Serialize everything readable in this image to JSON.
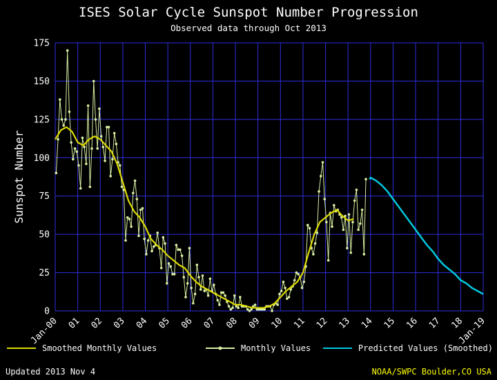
{
  "title": "ISES Solar Cycle Sunspot Number Progression",
  "subtitle": "Observed data through Oct 2013",
  "footer": {
    "updated": "Updated 2013 Nov  4",
    "source": "NOAA/SWPC Boulder,CO USA"
  },
  "legend": [
    {
      "label": "Smoothed Monthly Values",
      "color": "#dedc00",
      "style": "line"
    },
    {
      "label": "Monthly Values",
      "color": "#d9efa3",
      "style": "line-dot"
    },
    {
      "label": "Predicted Values (Smoothed)",
      "color": "#00c9e0",
      "style": "line"
    }
  ],
  "chart_data": {
    "type": "line",
    "title": "ISES Solar Cycle Sunspot Number Progression",
    "subtitle": "Observed data through Oct 2013",
    "xlabel": "",
    "ylabel": "Sunspot Number",
    "ylim": [
      0,
      175
    ],
    "x_range": [
      2000,
      2019
    ],
    "y_ticks": [
      0,
      25,
      50,
      75,
      100,
      125,
      150,
      175
    ],
    "x_ticks": {
      "years": [
        2000,
        2001,
        2002,
        2003,
        2004,
        2005,
        2006,
        2007,
        2008,
        2009,
        2010,
        2011,
        2012,
        2013,
        2014,
        2015,
        2016,
        2017,
        2018,
        2019
      ],
      "labels": [
        "Jan-00",
        "01",
        "02",
        "03",
        "04",
        "05",
        "06",
        "07",
        "08",
        "09",
        "10",
        "11",
        "12",
        "13",
        "14",
        "15",
        "16",
        "17",
        "18",
        "Jan-19"
      ]
    },
    "grid": true,
    "legend_position": "bottom",
    "colors": {
      "background": "#000000",
      "grid": "#2e2ee0",
      "text": "#ffffff",
      "accent": "#ffff00",
      "monthly": "#d9efa3",
      "smoothed": "#dedc00",
      "predicted": "#00c9e0"
    },
    "series": [
      {
        "name": "Monthly Values",
        "color": "#d9efa3",
        "start_year": 2000,
        "start_month": 1,
        "values": [
          90,
          112,
          138,
          125,
          121,
          125,
          170,
          130,
          110,
          99,
          106,
          104,
          95,
          80,
          113,
          107,
          96,
          134,
          81,
          106,
          150,
          125,
          106,
          132,
          114,
          107,
          98,
          120,
          120,
          88,
          99,
          116,
          109,
          97,
          95,
          81,
          79,
          46,
          61,
          60,
          55,
          77,
          85,
          73,
          49,
          66,
          67,
          47,
          37,
          46,
          49,
          39,
          42,
          43,
          51,
          41,
          28,
          48,
          44,
          18,
          31,
          29,
          24,
          24,
          43,
          40,
          40,
          36,
          22,
          9,
          18,
          41,
          15,
          5,
          11,
          30,
          22,
          14,
          23,
          13,
          14,
          10,
          21,
          13,
          17,
          11,
          7,
          4,
          12,
          12,
          10,
          6,
          3,
          1,
          2,
          10,
          3,
          2,
          9,
          3,
          3,
          3,
          1,
          0,
          1,
          3,
          4,
          1,
          1,
          1,
          1,
          1,
          3,
          3,
          3,
          0,
          4,
          5,
          4,
          11,
          13,
          19,
          15,
          8,
          9,
          14,
          16,
          20,
          25,
          24,
          22,
          15,
          19,
          29,
          56,
          54,
          41,
          37,
          44,
          51,
          78,
          88,
          97,
          73,
          58,
          33,
          64,
          55,
          69,
          65,
          66,
          63,
          61,
          53,
          62,
          41,
          63,
          38,
          58,
          72,
          79,
          53,
          57,
          66,
          37,
          86
        ]
      },
      {
        "name": "Smoothed Monthly Values",
        "color": "#dedc00",
        "x": [
          2000.0,
          2000.25,
          2000.5,
          2000.75,
          2001.0,
          2001.25,
          2001.5,
          2001.75,
          2002.0,
          2002.25,
          2002.5,
          2002.75,
          2003.0,
          2003.25,
          2003.5,
          2003.75,
          2004.0,
          2004.25,
          2004.5,
          2004.75,
          2005.0,
          2005.25,
          2005.5,
          2005.75,
          2006.0,
          2006.25,
          2006.5,
          2006.75,
          2007.0,
          2007.25,
          2007.5,
          2007.75,
          2008.0,
          2008.25,
          2008.5,
          2008.75,
          2009.0,
          2009.25,
          2009.5,
          2009.75,
          2010.0,
          2010.25,
          2010.5,
          2010.75,
          2011.0,
          2011.25,
          2011.5,
          2011.75,
          2012.0,
          2012.25,
          2012.5,
          2012.75,
          2013.0,
          2013.25
        ],
        "y": [
          112,
          118,
          120,
          117,
          110,
          108,
          112,
          114,
          112,
          108,
          104,
          96,
          84,
          72,
          65,
          61,
          55,
          47,
          43,
          40,
          36,
          33,
          30,
          28,
          23,
          19,
          16,
          14,
          12,
          10,
          8,
          6,
          4,
          4,
          3,
          2,
          2,
          2,
          3,
          5,
          9,
          13,
          16,
          19,
          25,
          38,
          50,
          58,
          61,
          64,
          66,
          62,
          59,
          60
        ]
      },
      {
        "name": "Predicted Values (Smoothed)",
        "color": "#00c9e0",
        "x": [
          2013.95,
          2014.0,
          2014.25,
          2014.5,
          2014.75,
          2015.0,
          2015.25,
          2015.5,
          2015.75,
          2016.0,
          2016.25,
          2016.5,
          2016.75,
          2017.0,
          2017.25,
          2017.5,
          2017.75,
          2018.0,
          2018.25,
          2018.5,
          2018.75,
          2019.0
        ],
        "y": [
          86,
          87,
          85,
          82,
          78,
          73,
          68,
          63,
          58,
          53,
          48,
          43,
          39,
          34,
          30,
          27,
          24,
          20,
          18,
          15,
          13,
          11
        ]
      }
    ]
  }
}
